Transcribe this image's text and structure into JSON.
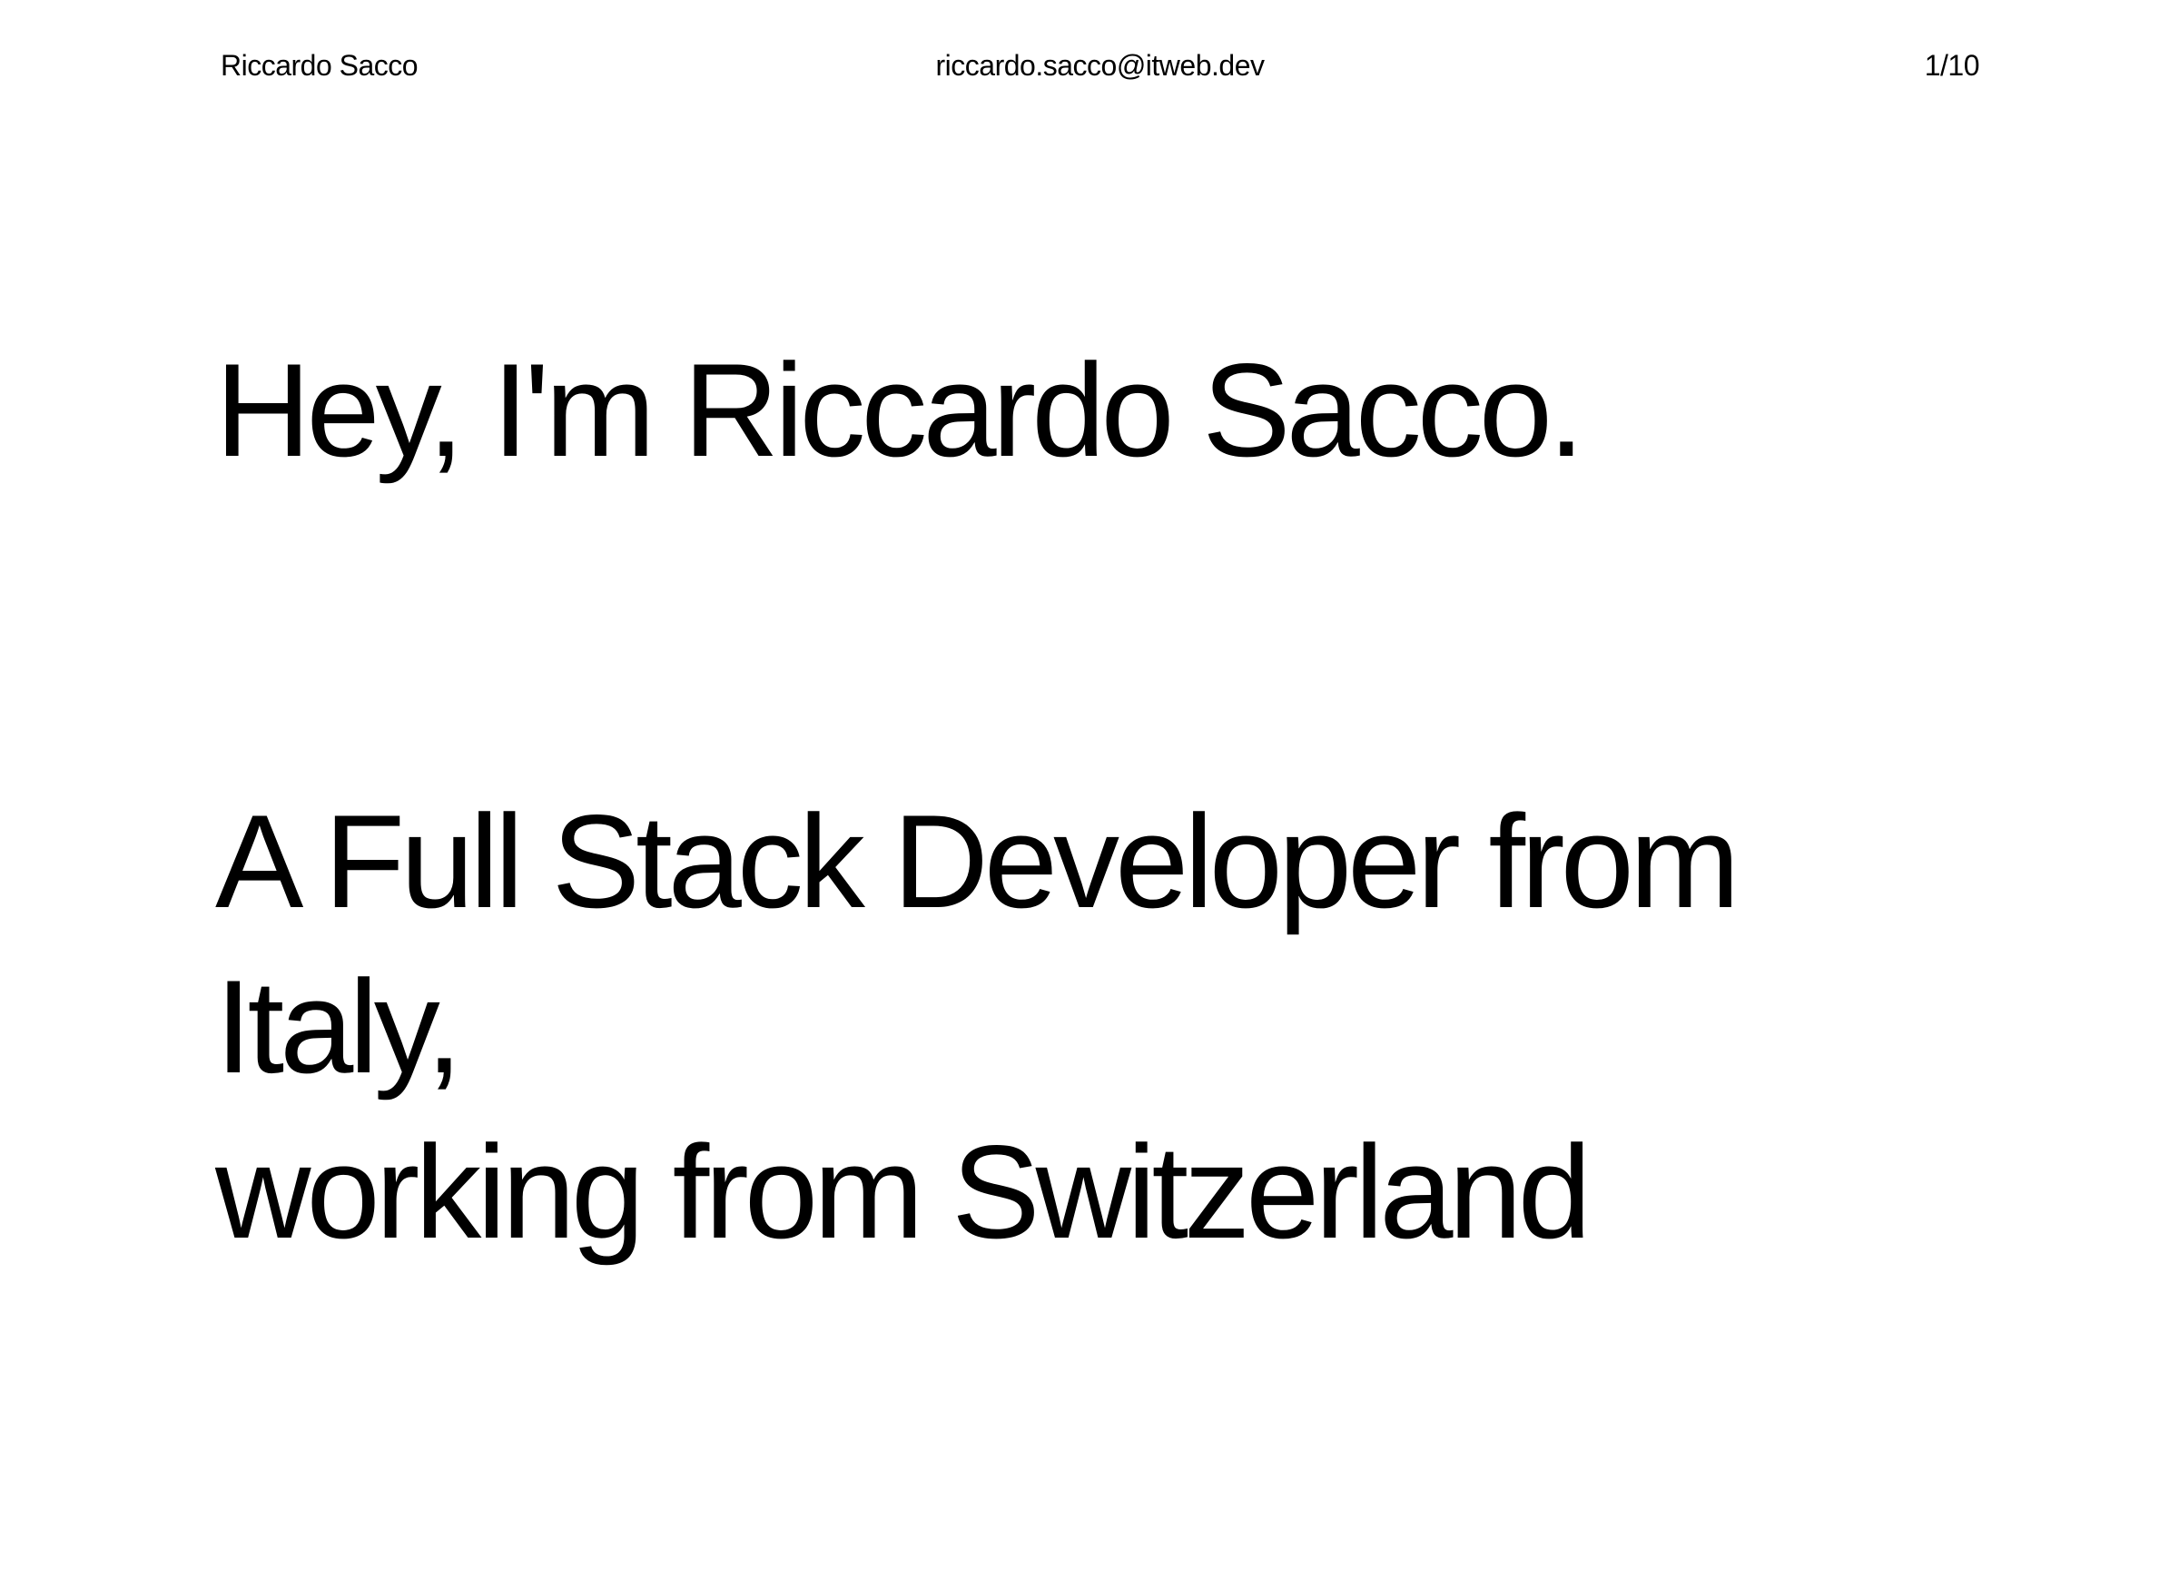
{
  "header": {
    "name": "Riccardo Sacco",
    "email": "riccardo.sacco@itweb.dev",
    "page_indicator": "1/10"
  },
  "hero": {
    "greeting": "Hey, I'm Riccardo Sacco.",
    "intro_lines": [
      "A Full Stack Developer from",
      "Italy,",
      "working from Switzerland"
    ]
  }
}
